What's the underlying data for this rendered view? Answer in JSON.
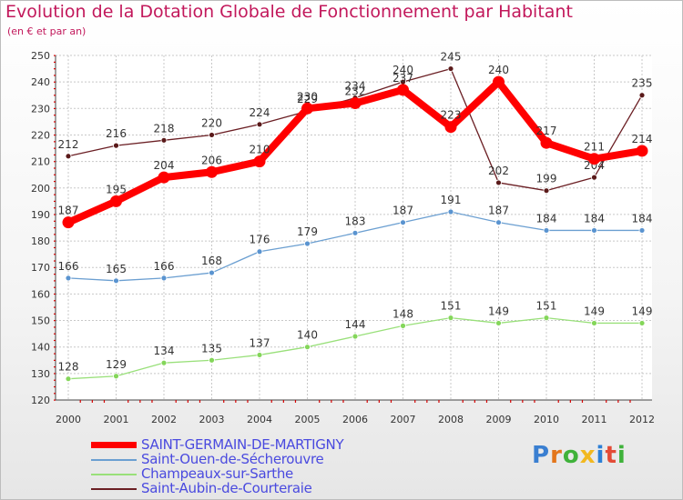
{
  "title": "Evolution de la Dotation Globale de Fonctionnement par Habitant",
  "subtitle": "(en € et par an)",
  "brand": {
    "text": "Proxiti",
    "letters": [
      "P",
      "r",
      "o",
      "x",
      "i",
      "t",
      "i"
    ],
    "colors": [
      "#3a7fd1",
      "#e3761b",
      "#3fb23a",
      "#f2b81f",
      "#2c7fd6",
      "#e34b36",
      "#3fb23a"
    ]
  },
  "chart_data": {
    "type": "line",
    "title": "Evolution de la Dotation Globale de Fonctionnement par Habitant",
    "ylabel": "(en € et par an)",
    "xlabel": "",
    "ylim": [
      120,
      250
    ],
    "yticks": [
      120,
      130,
      140,
      150,
      160,
      170,
      180,
      190,
      200,
      210,
      220,
      230,
      240,
      250
    ],
    "grid": true,
    "categories": [
      "2000",
      "2001",
      "2002",
      "2003",
      "2004",
      "2005",
      "2006",
      "2007",
      "2008",
      "2009",
      "2010",
      "2011",
      "2012"
    ],
    "series": [
      {
        "name": "SAINT-GERMAIN-DE-MARTIGNY",
        "color": "#ff0000",
        "values": [
          187,
          195,
          204,
          206,
          210,
          230,
          232,
          237,
          223,
          240,
          217,
          211,
          214
        ]
      },
      {
        "name": "Saint-Ouen-de-Sécherouvre",
        "color": "#6b9fd1",
        "values": [
          166,
          165,
          166,
          168,
          176,
          179,
          183,
          187,
          191,
          187,
          184,
          184,
          184
        ]
      },
      {
        "name": "Champeaux-sur-Sarthe",
        "color": "#99e07a",
        "values": [
          128,
          129,
          134,
          135,
          137,
          140,
          144,
          148,
          151,
          149,
          151,
          149,
          149
        ]
      },
      {
        "name": "Saint-Aubin-de-Courteraie",
        "color": "#6b1f24",
        "values": [
          212,
          216,
          218,
          220,
          224,
          229,
          234,
          240,
          245,
          202,
          199,
          204,
          235
        ]
      }
    ]
  }
}
